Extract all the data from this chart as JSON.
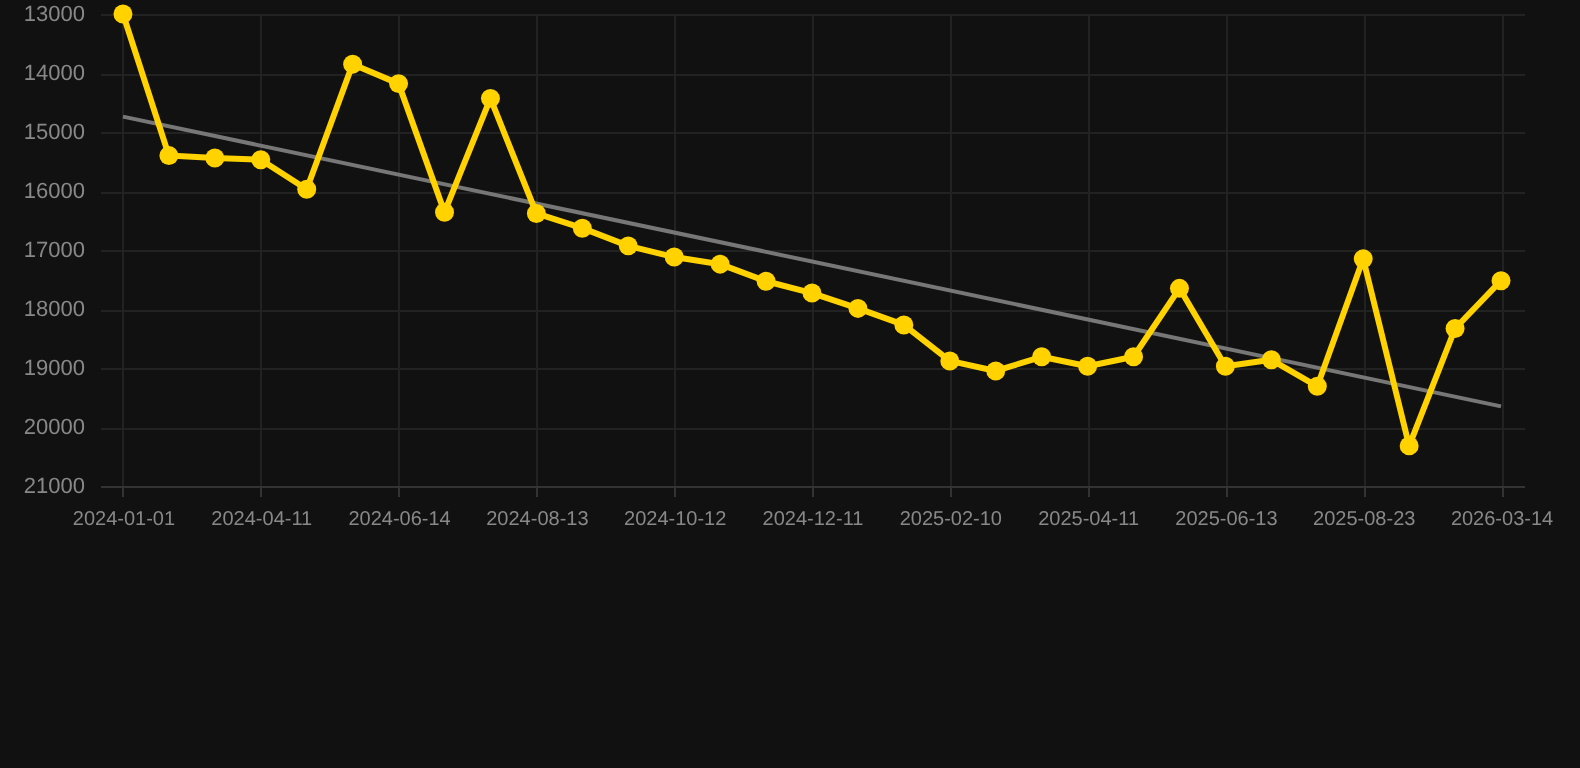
{
  "chart_data": {
    "type": "line",
    "categories": [
      "2024-01-01",
      null,
      null,
      "2024-04-11",
      null,
      null,
      "2024-06-14",
      null,
      null,
      "2024-08-13",
      null,
      null,
      "2024-10-12",
      null,
      null,
      "2024-12-11",
      null,
      null,
      "2025-02-10",
      null,
      null,
      "2025-04-11",
      null,
      null,
      "2025-06-13",
      null,
      null,
      "2025-08-23",
      null,
      null,
      "2026-03-14"
    ],
    "series": [
      {
        "color": "#ffd200",
        "values": [
          13000,
          15400,
          15440,
          15470,
          15970,
          13850,
          14180,
          16360,
          14430,
          16380,
          16630,
          16930,
          17120,
          17240,
          17530,
          17730,
          17990,
          18270,
          18880,
          19050,
          18810,
          18970,
          18810,
          17650,
          18970,
          18860,
          19310,
          17150,
          20320,
          18330,
          17520
        ]
      },
      {
        "type": "line",
        "marker": "none",
        "color": "#777777",
        "values": [
          14740,
          null,
          null,
          null,
          null,
          null,
          null,
          null,
          null,
          null,
          null,
          null,
          null,
          null,
          null,
          null,
          null,
          null,
          null,
          null,
          null,
          null,
          null,
          null,
          null,
          null,
          null,
          null,
          null,
          null,
          19650
        ]
      }
    ],
    "ylim": [
      21000,
      13000
    ],
    "yticks": [
      13000,
      14000,
      15000,
      16000,
      17000,
      18000,
      19000,
      20000,
      21000
    ],
    "grid": true,
    "marker": "circle",
    "line_style": "solid"
  }
}
